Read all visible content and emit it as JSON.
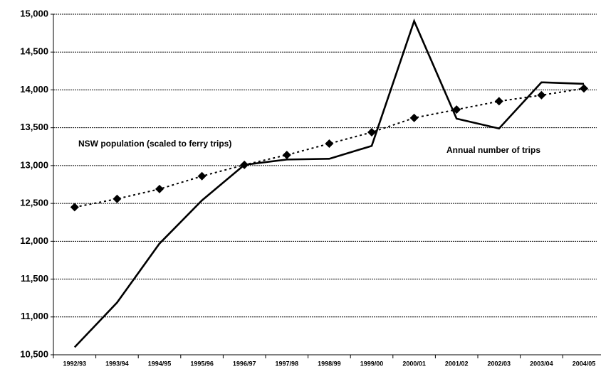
{
  "chart_data": {
    "type": "line",
    "categories": [
      "1992/93",
      "1993/94",
      "1994/95",
      "1995/96",
      "1996/97",
      "1997/98",
      "1998/99",
      "1999/00",
      "2000/01",
      "2001/02",
      "2002/03",
      "2003/04",
      "2004/05"
    ],
    "series": [
      {
        "name": "Annual number of trips",
        "color": "#000000",
        "style": "solid",
        "values": [
          10600,
          11190,
          11970,
          12540,
          13010,
          13080,
          13090,
          13260,
          14910,
          13620,
          13490,
          14100,
          14080
        ]
      },
      {
        "name": "NSW population (scaled to ferry trips)",
        "color": "#000000",
        "style": "dotted-diamond",
        "values": [
          12450,
          12560,
          12690,
          12860,
          13010,
          13140,
          13290,
          13440,
          13630,
          13740,
          13850,
          13930,
          14020
        ]
      }
    ],
    "ylim": [
      10500,
      15000
    ],
    "yticks": [
      {
        "value": 10500,
        "label": "10,500"
      },
      {
        "value": 11000,
        "label": "11,000"
      },
      {
        "value": 11500,
        "label": "11,500"
      },
      {
        "value": 12000,
        "label": "12,000"
      },
      {
        "value": 12500,
        "label": "12,500"
      },
      {
        "value": 13000,
        "label": "13,000"
      },
      {
        "value": 13500,
        "label": "13,500"
      },
      {
        "value": 14000,
        "label": "14,000"
      },
      {
        "value": 14500,
        "label": "14,500"
      },
      {
        "value": 15000,
        "label": "15,000"
      }
    ],
    "grid": true
  }
}
